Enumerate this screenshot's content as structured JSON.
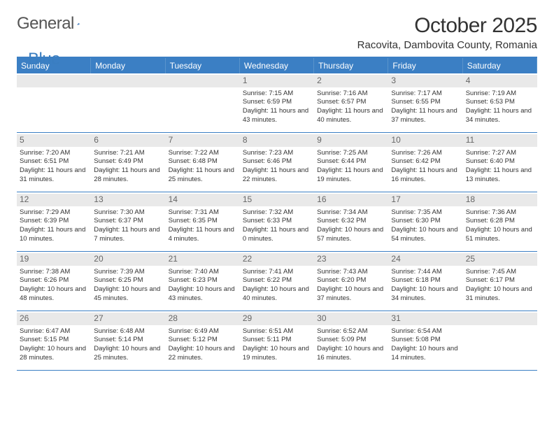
{
  "logo": {
    "word1": "General",
    "word2": "Blue"
  },
  "header": {
    "title": "October 2025",
    "location": "Racovita, Dambovita County, Romania"
  },
  "colors": {
    "header_bg": "#3b7fc4",
    "header_border": "#3b7fc4",
    "daynum_bg": "#e9e9e9",
    "logo_blue": "#3a7ec1"
  },
  "day_headers": [
    "Sunday",
    "Monday",
    "Tuesday",
    "Wednesday",
    "Thursday",
    "Friday",
    "Saturday"
  ],
  "leading_empty": 3,
  "days": [
    {
      "n": "1",
      "sr": "7:15 AM",
      "ss": "6:59 PM",
      "dh": "11",
      "dm": "43"
    },
    {
      "n": "2",
      "sr": "7:16 AM",
      "ss": "6:57 PM",
      "dh": "11",
      "dm": "40"
    },
    {
      "n": "3",
      "sr": "7:17 AM",
      "ss": "6:55 PM",
      "dh": "11",
      "dm": "37"
    },
    {
      "n": "4",
      "sr": "7:19 AM",
      "ss": "6:53 PM",
      "dh": "11",
      "dm": "34"
    },
    {
      "n": "5",
      "sr": "7:20 AM",
      "ss": "6:51 PM",
      "dh": "11",
      "dm": "31"
    },
    {
      "n": "6",
      "sr": "7:21 AM",
      "ss": "6:49 PM",
      "dh": "11",
      "dm": "28"
    },
    {
      "n": "7",
      "sr": "7:22 AM",
      "ss": "6:48 PM",
      "dh": "11",
      "dm": "25"
    },
    {
      "n": "8",
      "sr": "7:23 AM",
      "ss": "6:46 PM",
      "dh": "11",
      "dm": "22"
    },
    {
      "n": "9",
      "sr": "7:25 AM",
      "ss": "6:44 PM",
      "dh": "11",
      "dm": "19"
    },
    {
      "n": "10",
      "sr": "7:26 AM",
      "ss": "6:42 PM",
      "dh": "11",
      "dm": "16"
    },
    {
      "n": "11",
      "sr": "7:27 AM",
      "ss": "6:40 PM",
      "dh": "11",
      "dm": "13"
    },
    {
      "n": "12",
      "sr": "7:29 AM",
      "ss": "6:39 PM",
      "dh": "11",
      "dm": "10"
    },
    {
      "n": "13",
      "sr": "7:30 AM",
      "ss": "6:37 PM",
      "dh": "11",
      "dm": "7"
    },
    {
      "n": "14",
      "sr": "7:31 AM",
      "ss": "6:35 PM",
      "dh": "11",
      "dm": "4"
    },
    {
      "n": "15",
      "sr": "7:32 AM",
      "ss": "6:33 PM",
      "dh": "11",
      "dm": "0"
    },
    {
      "n": "16",
      "sr": "7:34 AM",
      "ss": "6:32 PM",
      "dh": "10",
      "dm": "57"
    },
    {
      "n": "17",
      "sr": "7:35 AM",
      "ss": "6:30 PM",
      "dh": "10",
      "dm": "54"
    },
    {
      "n": "18",
      "sr": "7:36 AM",
      "ss": "6:28 PM",
      "dh": "10",
      "dm": "51"
    },
    {
      "n": "19",
      "sr": "7:38 AM",
      "ss": "6:26 PM",
      "dh": "10",
      "dm": "48"
    },
    {
      "n": "20",
      "sr": "7:39 AM",
      "ss": "6:25 PM",
      "dh": "10",
      "dm": "45"
    },
    {
      "n": "21",
      "sr": "7:40 AM",
      "ss": "6:23 PM",
      "dh": "10",
      "dm": "43"
    },
    {
      "n": "22",
      "sr": "7:41 AM",
      "ss": "6:22 PM",
      "dh": "10",
      "dm": "40"
    },
    {
      "n": "23",
      "sr": "7:43 AM",
      "ss": "6:20 PM",
      "dh": "10",
      "dm": "37"
    },
    {
      "n": "24",
      "sr": "7:44 AM",
      "ss": "6:18 PM",
      "dh": "10",
      "dm": "34"
    },
    {
      "n": "25",
      "sr": "7:45 AM",
      "ss": "6:17 PM",
      "dh": "10",
      "dm": "31"
    },
    {
      "n": "26",
      "sr": "6:47 AM",
      "ss": "5:15 PM",
      "dh": "10",
      "dm": "28"
    },
    {
      "n": "27",
      "sr": "6:48 AM",
      "ss": "5:14 PM",
      "dh": "10",
      "dm": "25"
    },
    {
      "n": "28",
      "sr": "6:49 AM",
      "ss": "5:12 PM",
      "dh": "10",
      "dm": "22"
    },
    {
      "n": "29",
      "sr": "6:51 AM",
      "ss": "5:11 PM",
      "dh": "10",
      "dm": "19"
    },
    {
      "n": "30",
      "sr": "6:52 AM",
      "ss": "5:09 PM",
      "dh": "10",
      "dm": "16"
    },
    {
      "n": "31",
      "sr": "6:54 AM",
      "ss": "5:08 PM",
      "dh": "10",
      "dm": "14"
    }
  ],
  "labels": {
    "sunrise": "Sunrise:",
    "sunset": "Sunset:",
    "daylight_prefix": "Daylight:",
    "hours_word": "hours",
    "and_word": "and",
    "minutes_word": "minutes."
  }
}
